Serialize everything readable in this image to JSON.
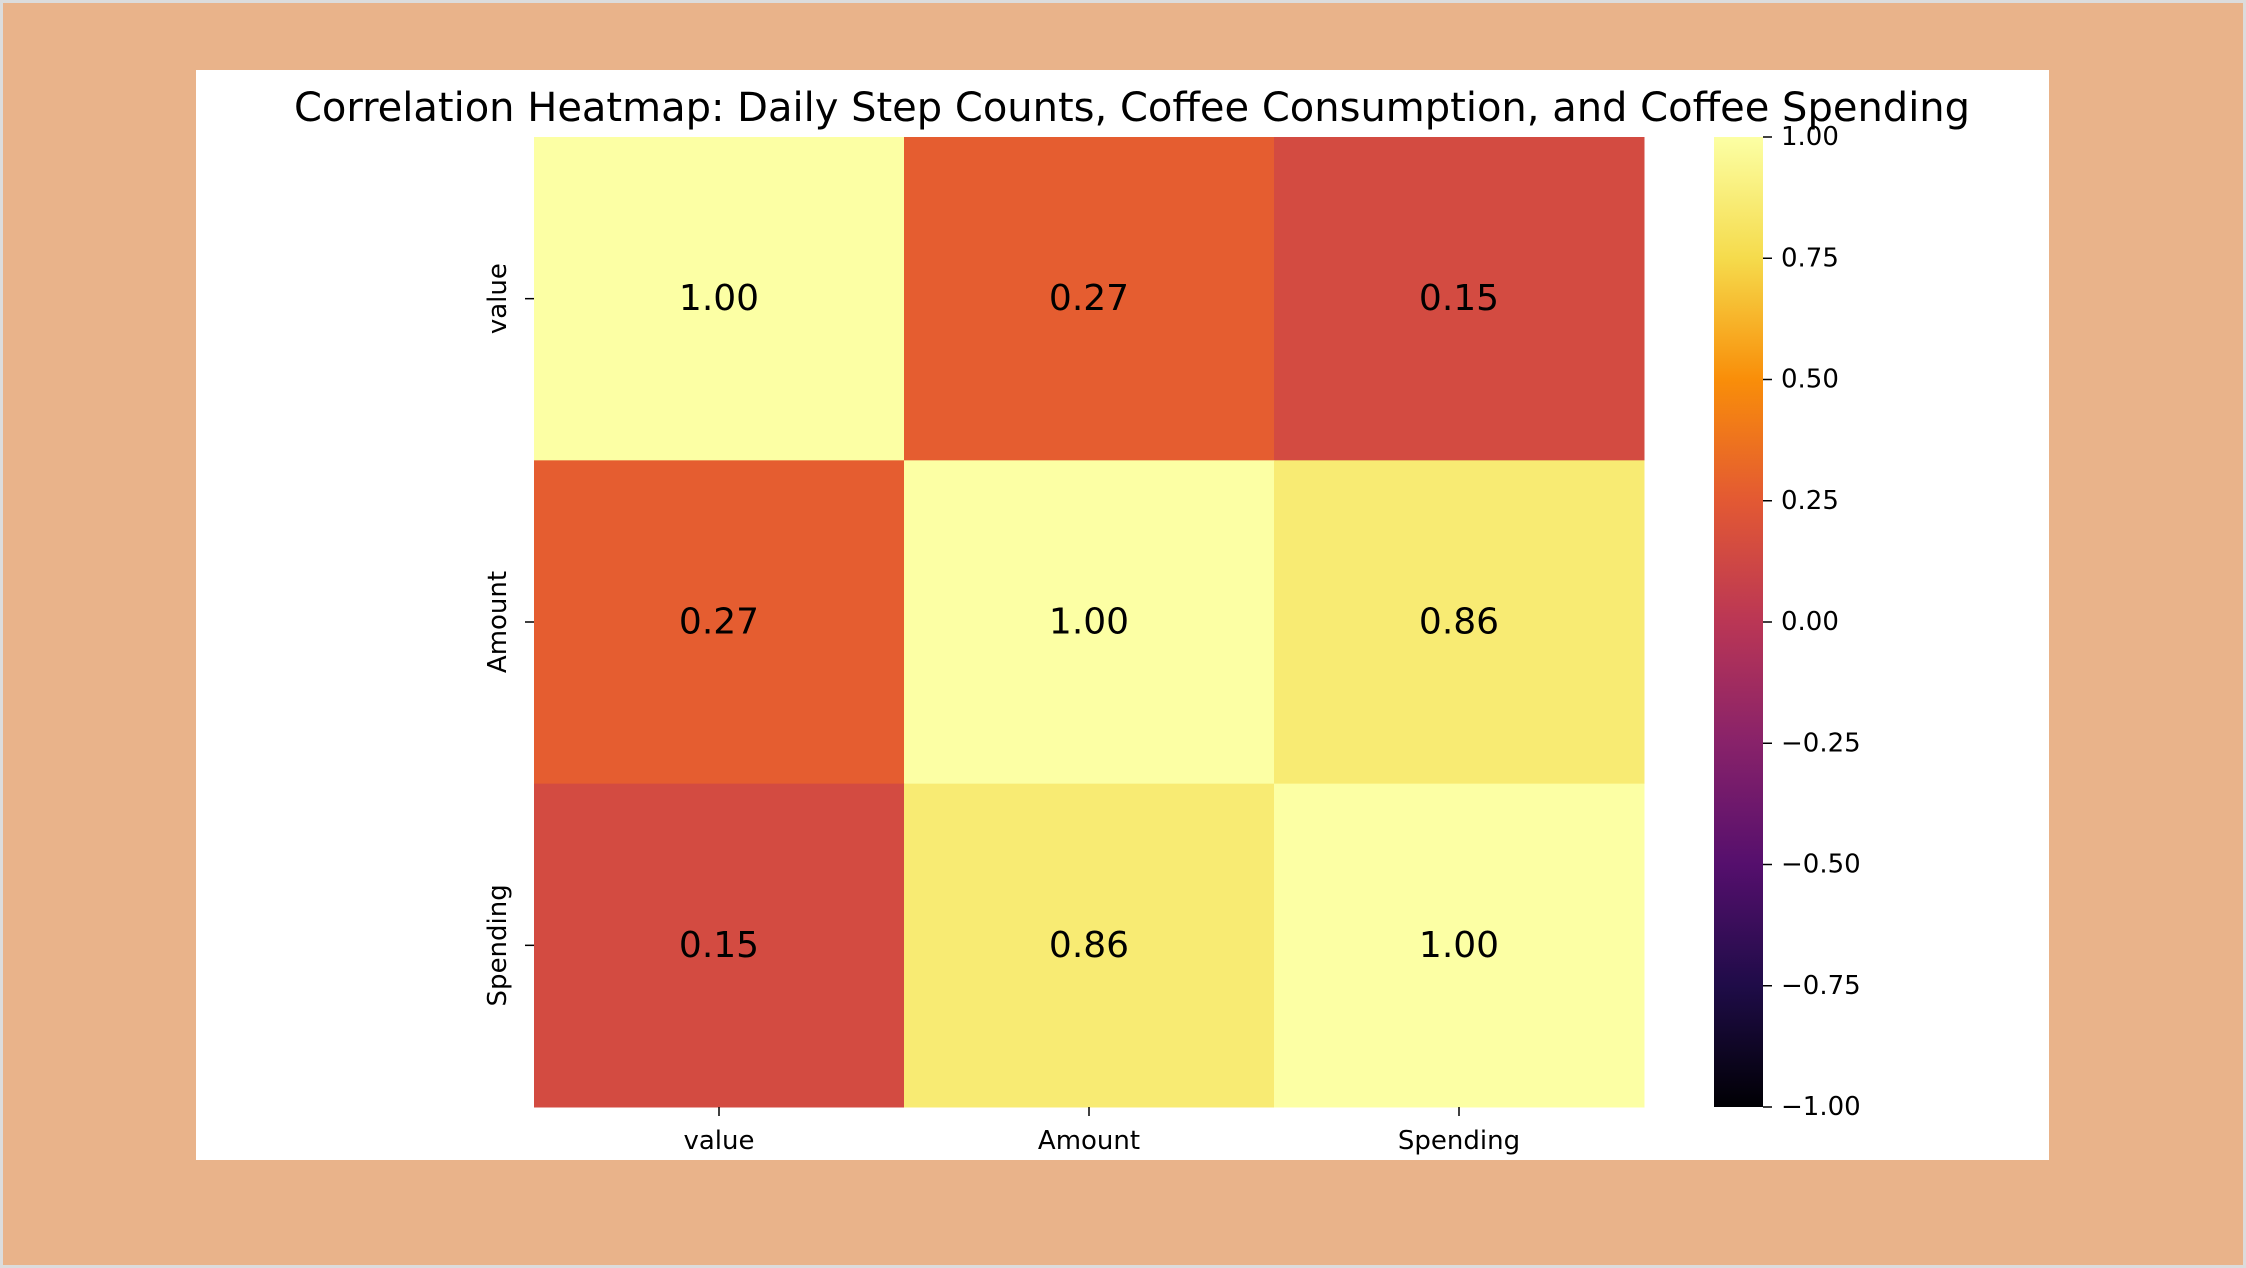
{
  "colors": {
    "background": "#e9b38a",
    "figure": "#ffffff"
  },
  "chart_data": {
    "type": "heatmap",
    "title": "Correlation Heatmap: Daily Step Counts, Coffee Consumption, and Coffee Spending",
    "x_labels": [
      "value",
      "Amount",
      "Spending"
    ],
    "y_labels": [
      "value",
      "Amount",
      "Spending"
    ],
    "values": [
      [
        1.0,
        0.27,
        0.15
      ],
      [
        0.27,
        1.0,
        0.86
      ],
      [
        0.15,
        0.86,
        1.0
      ]
    ],
    "cell_labels": [
      [
        "1.00",
        "0.27",
        "0.15"
      ],
      [
        "0.27",
        "1.00",
        "0.86"
      ],
      [
        "0.15",
        "0.86",
        "1.00"
      ]
    ],
    "colormap": "inferno",
    "vmin": -1.0,
    "vmax": 1.0,
    "colorbar_ticks": [
      1.0,
      0.75,
      0.5,
      0.25,
      0.0,
      -0.25,
      -0.5,
      -0.75,
      -1.0
    ],
    "colorbar_tick_labels": [
      "1.00",
      "0.75",
      "0.50",
      "0.25",
      "0.00",
      "−0.25",
      "−0.50",
      "−0.75",
      "−1.00"
    ]
  }
}
